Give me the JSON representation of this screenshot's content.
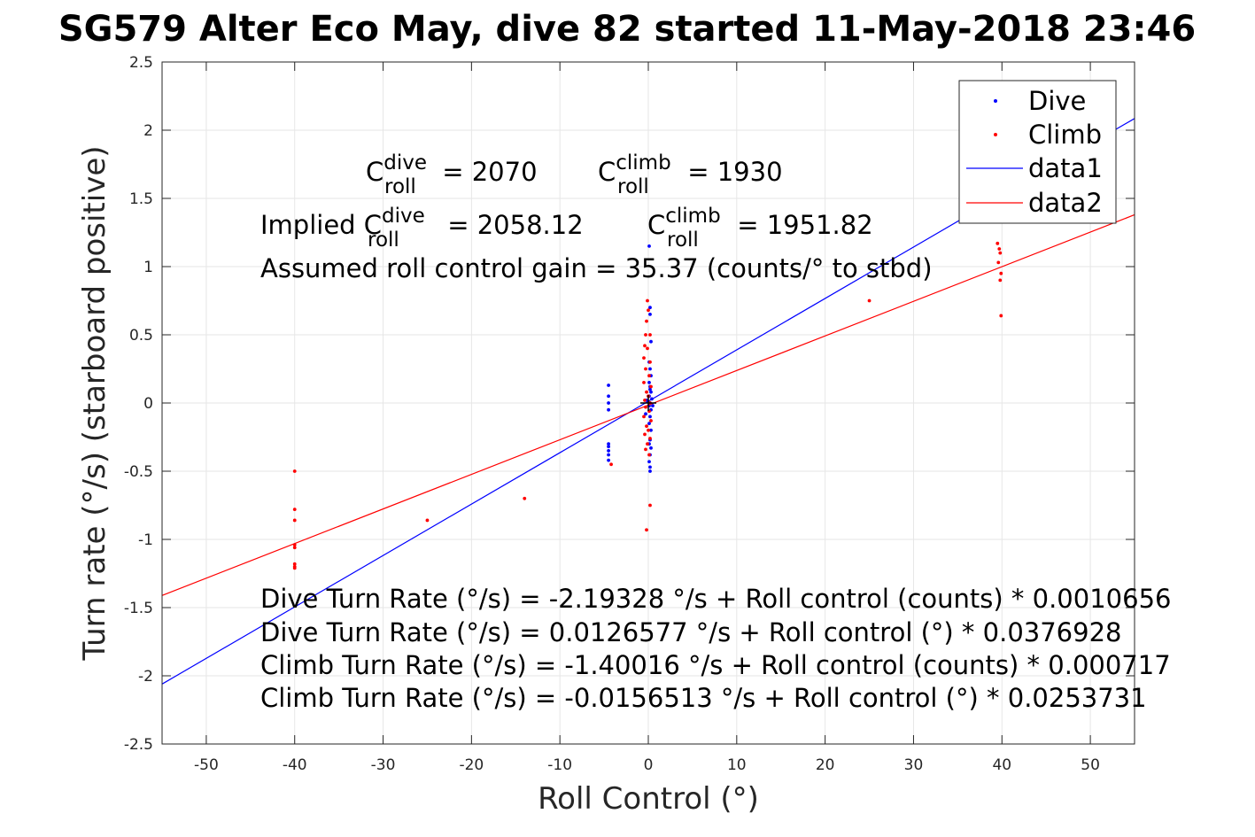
{
  "chart_data": {
    "type": "scatter",
    "title": "SG579 Alter Eco May, dive 82 started 11-May-2018 23:46",
    "xlabel": "Roll Control (°)",
    "ylabel": "Turn rate (°/s) (starboard positive)",
    "xlim": [
      -55,
      55
    ],
    "ylim": [
      -2.5,
      2.5
    ],
    "xticks": [
      -50,
      -40,
      -30,
      -20,
      -10,
      0,
      10,
      20,
      30,
      40,
      50
    ],
    "yticks": [
      -2.5,
      -2,
      -1.5,
      -1,
      -0.5,
      0,
      0.5,
      1,
      1.5,
      2,
      2.5
    ],
    "grid": true,
    "legend_position": "top-right",
    "series": [
      {
        "name": "Dive",
        "kind": "points",
        "color": "#0000ff",
        "points": [
          [
            -4.5,
            0.13
          ],
          [
            -4.5,
            0.05
          ],
          [
            -4.5,
            0.0
          ],
          [
            -4.5,
            -0.05
          ],
          [
            -4.5,
            -0.3
          ],
          [
            -4.5,
            -0.32
          ],
          [
            -4.5,
            -0.35
          ],
          [
            -4.5,
            -0.38
          ],
          [
            -4.5,
            -0.42
          ],
          [
            0.1,
            1.15
          ],
          [
            0.2,
            0.65
          ],
          [
            0.2,
            0.7
          ],
          [
            0.3,
            0.45
          ],
          [
            0.1,
            0.3
          ],
          [
            0.2,
            0.25
          ],
          [
            0.3,
            0.2
          ],
          [
            0.1,
            0.15
          ],
          [
            0.2,
            0.12
          ],
          [
            0.2,
            0.1
          ],
          [
            0.3,
            0.08
          ],
          [
            0.1,
            0.05
          ],
          [
            0.4,
            0.03
          ],
          [
            0.2,
            0.0
          ],
          [
            0.1,
            -0.02
          ],
          [
            0.3,
            -0.05
          ],
          [
            0.2,
            -0.1
          ],
          [
            0.1,
            -0.15
          ],
          [
            0.3,
            -0.2
          ],
          [
            0.2,
            -0.27
          ],
          [
            0.1,
            -0.3
          ],
          [
            0.3,
            -0.33
          ],
          [
            0.2,
            -0.38
          ],
          [
            0.1,
            -0.43
          ],
          [
            0.2,
            -0.47
          ],
          [
            0.2,
            -0.5
          ],
          [
            -0.2,
            0.02
          ],
          [
            -0.3,
            -0.08
          ],
          [
            0.5,
            -0.02
          ]
        ]
      },
      {
        "name": "Climb",
        "kind": "points",
        "color": "#ff0000",
        "points": [
          [
            -40,
            -0.5
          ],
          [
            -40,
            -0.78
          ],
          [
            -40,
            -0.86
          ],
          [
            -40,
            -1.04
          ],
          [
            -40,
            -1.06
          ],
          [
            -40,
            -1.18
          ],
          [
            -40,
            -1.2
          ],
          [
            -40,
            -1.21
          ],
          [
            -25,
            -0.86
          ],
          [
            -14,
            -0.7
          ],
          [
            -4.2,
            -0.45
          ],
          [
            -0.1,
            0.75
          ],
          [
            0.0,
            0.68
          ],
          [
            -0.2,
            0.6
          ],
          [
            -0.3,
            0.5
          ],
          [
            0.2,
            0.5
          ],
          [
            -0.4,
            0.42
          ],
          [
            -0.1,
            0.4
          ],
          [
            -0.5,
            0.33
          ],
          [
            0.2,
            0.3
          ],
          [
            -0.3,
            0.25
          ],
          [
            0.1,
            0.2
          ],
          [
            -0.5,
            0.15
          ],
          [
            0.3,
            0.12
          ],
          [
            -0.2,
            0.08
          ],
          [
            0.0,
            0.05
          ],
          [
            -0.4,
            0.02
          ],
          [
            0.2,
            0.0
          ],
          [
            -0.3,
            -0.03
          ],
          [
            0.1,
            -0.06
          ],
          [
            -0.5,
            -0.1
          ],
          [
            0.3,
            -0.13
          ],
          [
            -0.2,
            -0.17
          ],
          [
            0.0,
            -0.2
          ],
          [
            -0.4,
            -0.23
          ],
          [
            0.2,
            -0.26
          ],
          [
            -0.1,
            -0.3
          ],
          [
            -0.3,
            -0.34
          ],
          [
            0.1,
            -0.38
          ],
          [
            0.2,
            -0.75
          ],
          [
            -0.2,
            -0.93
          ],
          [
            25,
            0.75
          ],
          [
            39.5,
            1.17
          ],
          [
            39.7,
            1.13
          ],
          [
            39.8,
            1.1
          ],
          [
            39.6,
            1.03
          ],
          [
            39.9,
            0.95
          ],
          [
            39.8,
            0.9
          ],
          [
            39.9,
            0.64
          ]
        ]
      },
      {
        "name": "data1",
        "kind": "line",
        "color": "#0000ff",
        "x": [
          -55,
          55
        ],
        "y": [
          -2.0604,
          2.0857
        ]
      },
      {
        "name": "data2",
        "kind": "line",
        "color": "#ff0000",
        "x": [
          -55,
          55
        ],
        "y": [
          -1.4111,
          1.3799
        ]
      }
    ],
    "annotations": {
      "c_dive_label": "C",
      "c_dive_sup": "dive",
      "c_dive_sub": "roll",
      "c_dive_value": " = 2070",
      "c_climb_label": "C",
      "c_climb_sup": "climb",
      "c_climb_sub": "roll",
      "c_climb_value": " = 1930",
      "implied_prefix": "Implied C",
      "implied_dive_sup": "dive",
      "implied_dive_sub": "roll",
      "implied_dive_value": " = 2058.12",
      "implied_climb_label": "C",
      "implied_climb_sup": "climb",
      "implied_climb_sub": "roll",
      "implied_climb_value": " = 1951.82",
      "gain": "Assumed roll control gain = 35.37 (counts/° to stbd)",
      "fit_lines": [
        "Dive Turn Rate (°/s) = -2.19328 °/s + Roll control (counts) * 0.0010656",
        "Dive Turn Rate (°/s) = 0.0126577 °/s + Roll control (°) * 0.0376928",
        "Climb Turn Rate (°/s) = -1.40016 °/s + Roll control (counts) * 0.000717",
        "Climb Turn Rate (°/s) = -0.0156513 °/s + Roll control (°) * 0.0253731"
      ]
    }
  }
}
